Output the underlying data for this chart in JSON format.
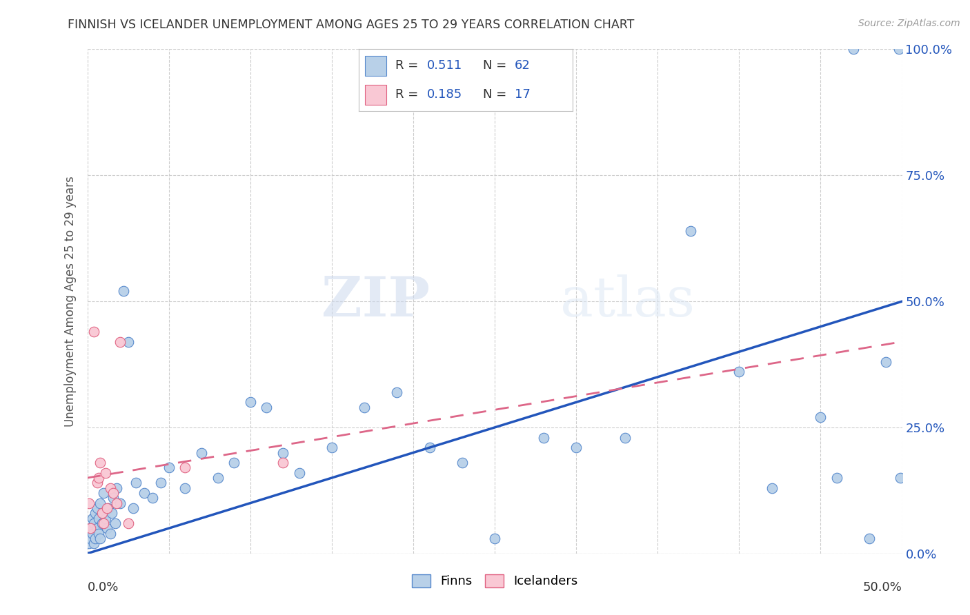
{
  "title": "FINNISH VS ICELANDER UNEMPLOYMENT AMONG AGES 25 TO 29 YEARS CORRELATION CHART",
  "source": "Source: ZipAtlas.com",
  "ylabel": "Unemployment Among Ages 25 to 29 years",
  "y_ticks": [
    "0.0%",
    "25.0%",
    "50.0%",
    "75.0%",
    "100.0%"
  ],
  "y_tick_vals": [
    0.0,
    0.25,
    0.5,
    0.75,
    1.0
  ],
  "xlim": [
    0,
    0.5
  ],
  "ylim": [
    0,
    1.0
  ],
  "watermark_zip": "ZIP",
  "watermark_atlas": "atlas",
  "finns_color": "#b8d0e8",
  "finns_edge_color": "#5588cc",
  "icelanders_color": "#f9c8d4",
  "icelanders_edge_color": "#e06080",
  "trend_finn_color": "#2255bb",
  "trend_icelander_color": "#dd6688",
  "legend_R1": "0.511",
  "legend_N1": "62",
  "legend_R2": "0.185",
  "legend_N2": "17",
  "finns_x": [
    0.001,
    0.002,
    0.002,
    0.003,
    0.003,
    0.004,
    0.004,
    0.005,
    0.005,
    0.006,
    0.006,
    0.007,
    0.007,
    0.008,
    0.008,
    0.009,
    0.01,
    0.01,
    0.011,
    0.012,
    0.013,
    0.014,
    0.015,
    0.016,
    0.017,
    0.018,
    0.02,
    0.022,
    0.025,
    0.028,
    0.03,
    0.035,
    0.04,
    0.045,
    0.05,
    0.06,
    0.07,
    0.08,
    0.09,
    0.1,
    0.11,
    0.12,
    0.13,
    0.15,
    0.17,
    0.19,
    0.21,
    0.23,
    0.25,
    0.28,
    0.3,
    0.33,
    0.37,
    0.4,
    0.42,
    0.45,
    0.46,
    0.47,
    0.48,
    0.49,
    0.498,
    0.499
  ],
  "finns_y": [
    0.02,
    0.03,
    0.05,
    0.04,
    0.07,
    0.02,
    0.06,
    0.03,
    0.08,
    0.05,
    0.09,
    0.04,
    0.07,
    0.03,
    0.1,
    0.06,
    0.08,
    0.12,
    0.07,
    0.05,
    0.09,
    0.04,
    0.08,
    0.11,
    0.06,
    0.13,
    0.1,
    0.52,
    0.42,
    0.09,
    0.14,
    0.12,
    0.11,
    0.14,
    0.17,
    0.13,
    0.2,
    0.15,
    0.18,
    0.3,
    0.29,
    0.2,
    0.16,
    0.21,
    0.29,
    0.32,
    0.21,
    0.18,
    0.03,
    0.23,
    0.21,
    0.23,
    0.64,
    0.36,
    0.13,
    0.27,
    0.15,
    1.0,
    0.03,
    0.38,
    1.0,
    0.15
  ],
  "icelanders_x": [
    0.001,
    0.002,
    0.004,
    0.006,
    0.007,
    0.008,
    0.009,
    0.01,
    0.011,
    0.012,
    0.014,
    0.016,
    0.018,
    0.02,
    0.025,
    0.06,
    0.12
  ],
  "icelanders_y": [
    0.1,
    0.05,
    0.44,
    0.14,
    0.15,
    0.18,
    0.08,
    0.06,
    0.16,
    0.09,
    0.13,
    0.12,
    0.1,
    0.42,
    0.06,
    0.17,
    0.18
  ],
  "finn_trend_x": [
    0.0,
    0.5
  ],
  "finn_trend_y": [
    0.0,
    0.5
  ],
  "icel_trend_x": [
    0.0,
    0.5
  ],
  "icel_trend_y": [
    0.15,
    0.42
  ]
}
